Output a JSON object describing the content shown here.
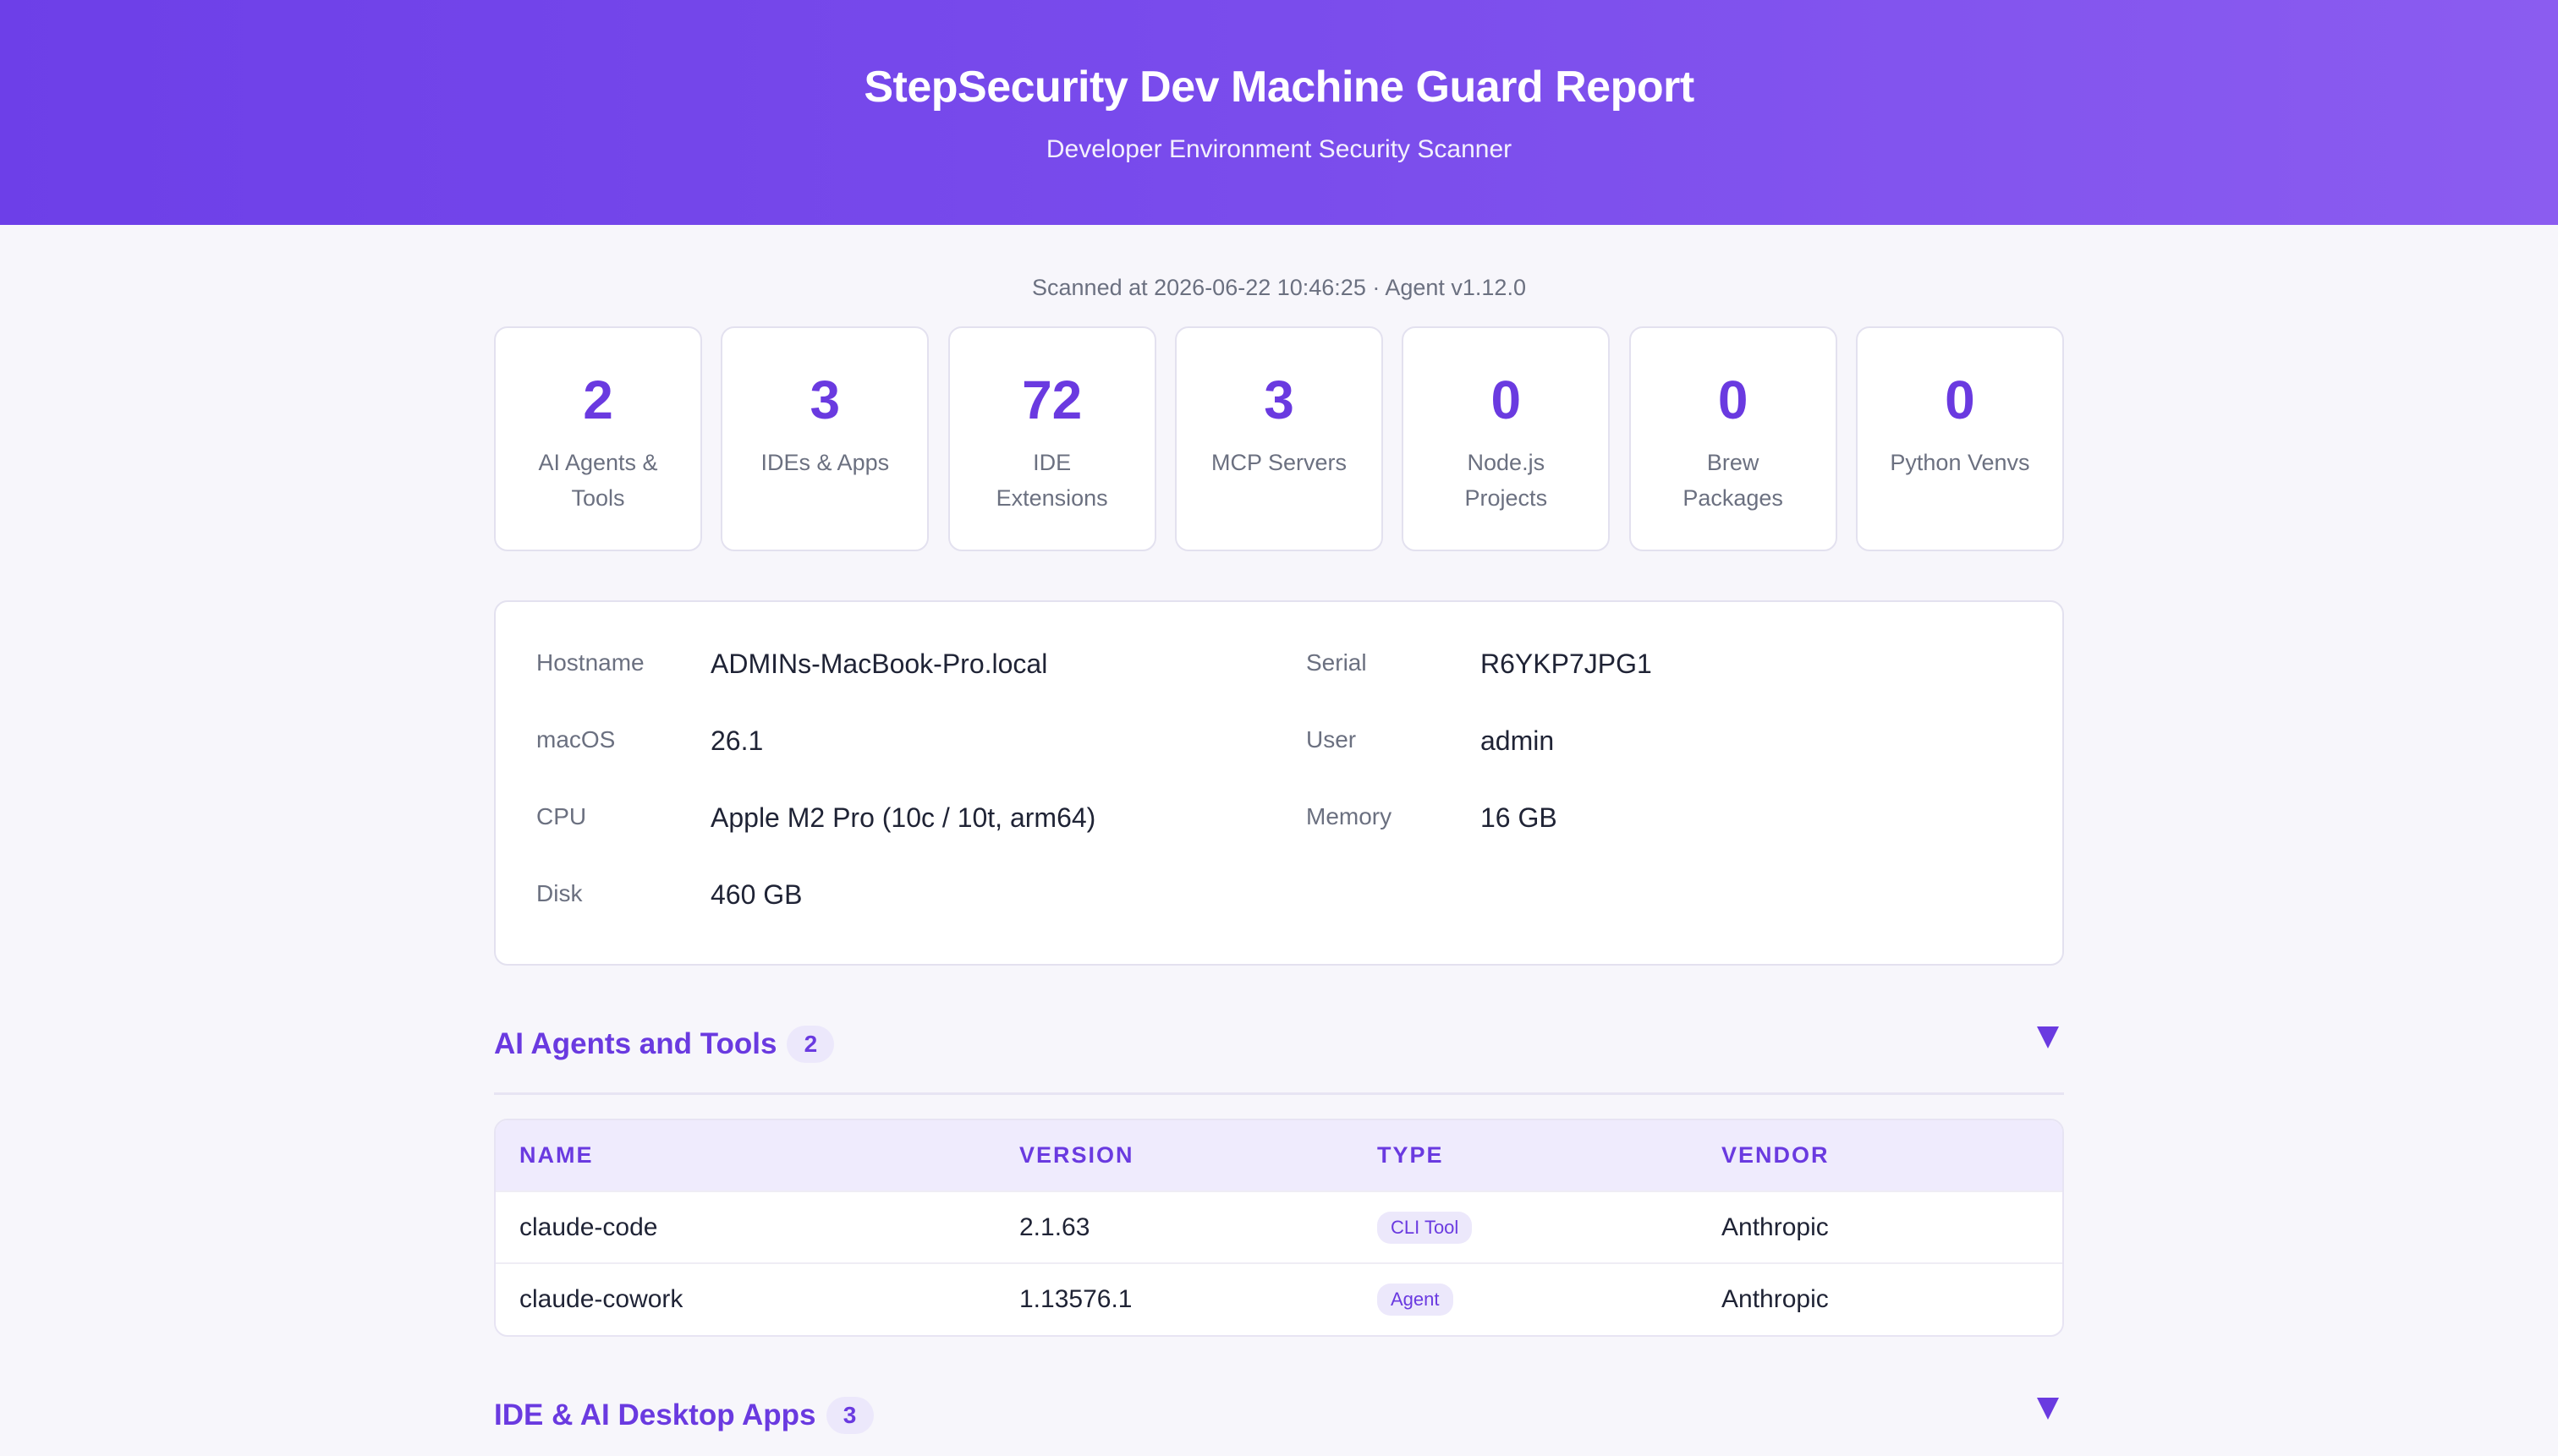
{
  "header": {
    "title": "StepSecurity Dev Machine Guard Report",
    "subtitle": "Developer Environment Security Scanner"
  },
  "scan_meta": "Scanned at 2026-06-22 10:46:25 · Agent v1.12.0",
  "stats": [
    {
      "value": "2",
      "label": "AI Agents & Tools"
    },
    {
      "value": "3",
      "label": "IDEs & Apps"
    },
    {
      "value": "72",
      "label": "IDE Extensions"
    },
    {
      "value": "3",
      "label": "MCP Servers"
    },
    {
      "value": "0",
      "label": "Node.js Projects"
    },
    {
      "value": "0",
      "label": "Brew Packages"
    },
    {
      "value": "0",
      "label": "Python Venvs"
    }
  ],
  "system": {
    "hostname_label": "Hostname",
    "hostname": "ADMINs-MacBook-Pro.local",
    "serial_label": "Serial",
    "serial": "R6YKP7JPG1",
    "macos_label": "macOS",
    "macos": "26.1",
    "user_label": "User",
    "user": "admin",
    "cpu_label": "CPU",
    "cpu": "Apple M2 Pro (10c / 10t, arm64)",
    "memory_label": "Memory",
    "memory": "16 GB",
    "disk_label": "Disk",
    "disk": "460 GB"
  },
  "sections": {
    "ai_agents": {
      "title": "AI Agents and Tools",
      "count": "2",
      "columns": [
        "NAME",
        "VERSION",
        "TYPE",
        "VENDOR"
      ],
      "rows": [
        {
          "name": "claude-code",
          "version": "2.1.63",
          "type": "CLI Tool",
          "vendor": "Anthropic"
        },
        {
          "name": "claude-cowork",
          "version": "1.13576.1",
          "type": "Agent",
          "vendor": "Anthropic"
        }
      ]
    },
    "ide_apps": {
      "title": "IDE & AI Desktop Apps",
      "count": "3"
    }
  },
  "colors": {
    "accent": "#6a3ae0",
    "header_start": "#6d3fe8",
    "header_end": "#8b5cf0",
    "badge_bg": "#ece8fb"
  }
}
